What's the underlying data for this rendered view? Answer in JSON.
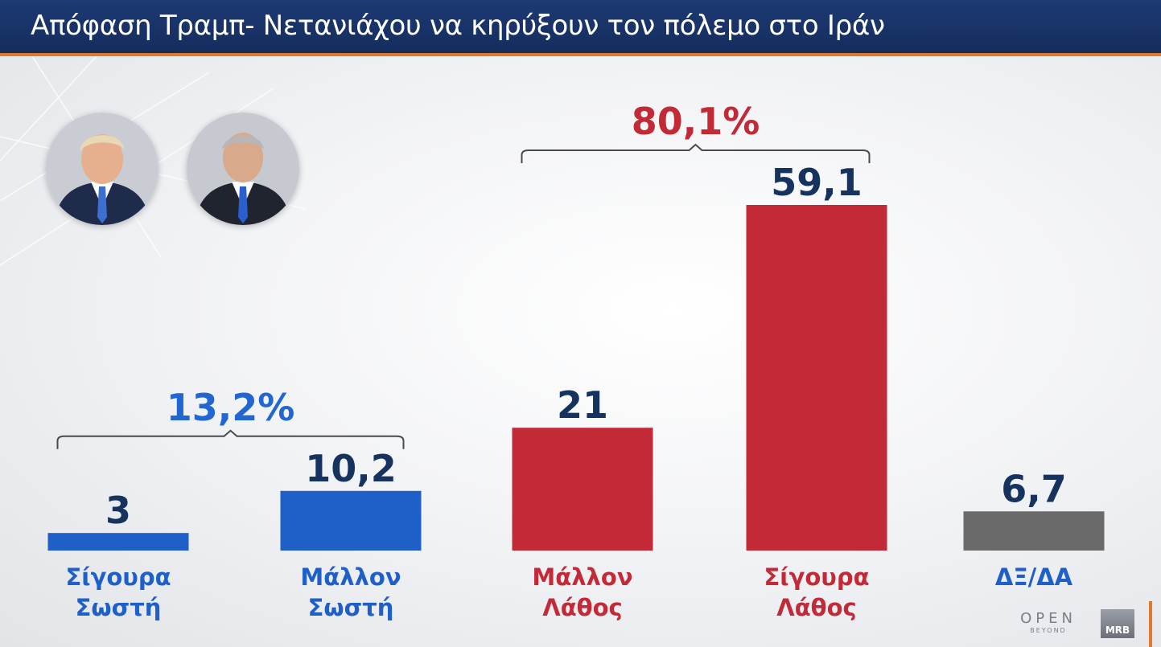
{
  "header": {
    "title": "Απόφαση Τραμπ- Νετανιάχου  να κηρύξουν τον πόλεμο στο Ιράν"
  },
  "colors": {
    "header_bg": "#1a3468",
    "header_accent": "#e07a2b",
    "blue_bar": "#1f5fc8",
    "red_bar": "#c22a38",
    "grey_bar": "#6a6a6a",
    "value_text": "#16325f",
    "blue_group_text": "#2166d1",
    "red_group_text": "#c22a38"
  },
  "chart_data": {
    "type": "bar",
    "categories": [
      [
        "Σίγουρα",
        "Σωστή"
      ],
      [
        "Μάλλον",
        "Σωστή"
      ],
      [
        "Μάλλον",
        "Λάθος"
      ],
      [
        "Σίγουρα",
        "Λάθος"
      ],
      [
        "ΔΞ/ΔΑ"
      ]
    ],
    "values": [
      3,
      10.2,
      21,
      59.1,
      6.7
    ],
    "value_labels": [
      "3",
      "10,2",
      "21",
      "59,1",
      "6,7"
    ],
    "bar_colors": [
      "#1f5fc8",
      "#1f5fc8",
      "#c22a38",
      "#c22a38",
      "#6a6a6a"
    ],
    "label_colors": [
      "#1f5fc8",
      "#1f5fc8",
      "#c22a38",
      "#c22a38",
      "#1f5fc8"
    ],
    "groups": [
      {
        "label": "13,2%",
        "from": 0,
        "to": 1,
        "color": "#2166d1"
      },
      {
        "label": "80,1%",
        "from": 2,
        "to": 3,
        "color": "#c22a38"
      }
    ],
    "ylim": [
      0,
      59.1
    ],
    "grid": false,
    "legend": "none"
  },
  "portraits": [
    {
      "icon": "person-portrait-icon"
    },
    {
      "icon": "person-portrait-icon"
    }
  ],
  "branding": {
    "open_name": "OPEN",
    "open_sub": "BEYOND",
    "mrb": "MRB"
  }
}
